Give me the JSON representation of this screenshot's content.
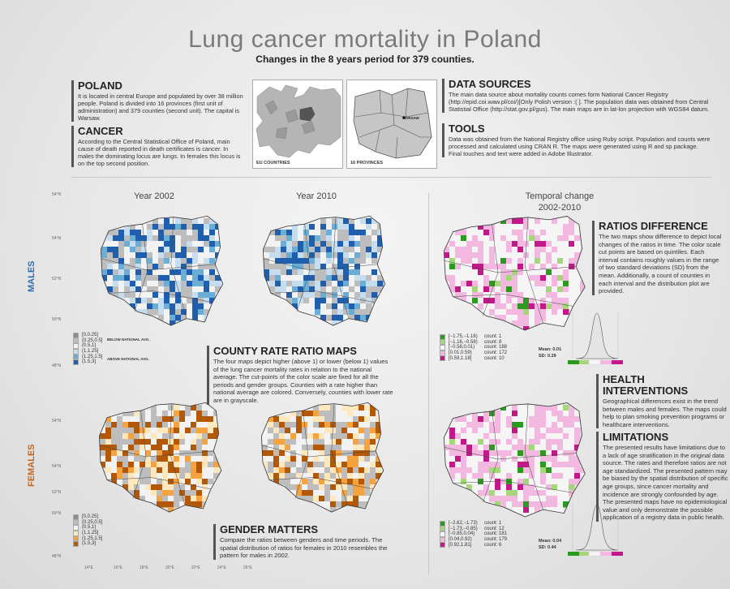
{
  "header": {
    "title": "Lung cancer mortality in Poland",
    "subtitle": "Changes in the 8 years period for 379 counties."
  },
  "poland": {
    "heading": "POLAND",
    "text": "It is located in central Europe and populated by over 38 million people. Poland is divided into 16 provinces (first unit of administration) and 379 counties (second unit). The capital is Warsaw."
  },
  "cancer": {
    "heading": "CANCER",
    "text": "According to the Central Statistical Office of Poland, main cause of death reported in death certificates is cancer. In males the dominating locus are lungs. In females this locus is on the top second position."
  },
  "thumbs": {
    "eu_label": "EU COUNTRIES",
    "prov_label": "16 PROVINCES",
    "warsaw_label": "WARSAW"
  },
  "data_sources": {
    "heading": "DATA SOURCES",
    "text": "The main data source about mortality counts comes form National Cancer Registry (http://epid.coi.waw.pl/coi/)[Only Polish version :( ]. The population data was obtained from Central Statistial Office (http://stat.gov.pl/gus). The main maps are in lat-lon projection with WGS84 datum."
  },
  "tools": {
    "heading": "TOOLS",
    "text": "Data was obtained from the National Registry office using Ruby script. Population and counts were processed and calculated using CRAN R. The maps were generated using R and sp package. Final touches and text were added in Adobe Illustrator."
  },
  "columns": {
    "y2002": "Year 2002",
    "y2010": "Year 2010",
    "temporal": "Temporal change",
    "temporal_range": "2002-2010"
  },
  "rows": {
    "males": "MALES",
    "females": "FEMALES"
  },
  "axes": {
    "lat_top": [
      "54°N",
      "54°N",
      "52°N",
      "50°N",
      "48°N"
    ],
    "lat_bottom": [
      "54°N",
      "54°N",
      "52°N",
      "50°N",
      "48°N"
    ],
    "lon": [
      "14°E",
      "16°E",
      "18°E",
      "20°E",
      "22°E",
      "24°E",
      "26°E"
    ]
  },
  "ratio_legend": {
    "items": [
      "[0,0.25]",
      "(0.25,0.5]",
      "(0.5,1]",
      "(1,1.25]",
      "(1.25,1.5]",
      "(1.5,3]"
    ],
    "below_label": "BELOW NATIONAL AVG.",
    "above_label": "ABOVE NATIONAL AVG."
  },
  "colors": {
    "male_scale": [
      "#8c8c8c",
      "#bdbdbd",
      "#f2f2f2",
      "#c6dcef",
      "#6aaed6",
      "#1f5fae"
    ],
    "female_scale": [
      "#8c8c8c",
      "#bdbdbd",
      "#f2f2f2",
      "#fde7bd",
      "#f4a340",
      "#b35806"
    ],
    "diff_scale": [
      "#2b9a1f",
      "#a5d77a",
      "#f5f5f5",
      "#f2b8df",
      "#c2188a"
    ]
  },
  "males_diff_legend": {
    "items": [
      {
        "label": "[−1.75,−1.16)",
        "count": "count: 1"
      },
      {
        "label": "[−1.16,−0.58)",
        "count": "count: 8"
      },
      {
        "label": "[−0.58,0.01)",
        "count": "count: 188"
      },
      {
        "label": "[0.01,0.59)",
        "count": "count: 172"
      },
      {
        "label": "[0.59,1.18]",
        "count": "count: 10"
      }
    ],
    "mean": "Mean: 0.01",
    "sd": "SD: 0.29"
  },
  "females_diff_legend": {
    "items": [
      {
        "label": "[−2.62,−1.73)",
        "count": "count: 1"
      },
      {
        "label": "[−1.73,−0.85)",
        "count": "count: 12"
      },
      {
        "label": "[−0.85,0.04)",
        "count": "count: 181"
      },
      {
        "label": "[0.04,0.92)",
        "count": "count: 179"
      },
      {
        "label": "[0.92,1.81]",
        "count": "count: 6"
      }
    ],
    "mean": "Mean: 0.04",
    "sd": "SD: 0.44"
  },
  "county_rate": {
    "heading": "COUNTY RATE RATIO MAPS",
    "text": "The four maps depict higher (above 1) or lower (below 1) values of the lung cancer mortality rates in relation to the national average. The cut-points of the color scale are fixed for all the periods and gender groups. Counties with a rate higher than national average are colored. Conversely, counties with lower rate are in grayscale."
  },
  "gender": {
    "heading": "GENDER MATTERS",
    "text": "Compare the ratios between genders and time periods. The spatial distribution of ratios for females in 2010 resembles the pattern for males in 2002."
  },
  "ratios_diff": {
    "heading": "RATIOS DIFFERENCE",
    "text": "The two maps show difference to depict local changes of the ratios in time. The color scale cut points are based on quintiles. Each interval contains roughly values in the range of two standard deviations (SD) from the mean. Additionally, a count of counties in each interval and the distribution plot are provided."
  },
  "health": {
    "heading": "HEALTH INTERVENTIONS",
    "text": "Geographical differences exist in the trend between males and females. The maps could help to plan smoking prevention programs or healthcare interventions."
  },
  "limitations": {
    "heading": "LIMITATIONS",
    "text": "The presented results have limitations due to a lack of age stratification in the original data source. The rates and therefore ratios are not age standardized. The presented pattern may be biased by the spatial distribution of specific age groups, since cancer mortality and incidence are strongly confounded by age. The presented maps have no epidemiological value and only demonstrate the possible application of a registry data in public health."
  }
}
